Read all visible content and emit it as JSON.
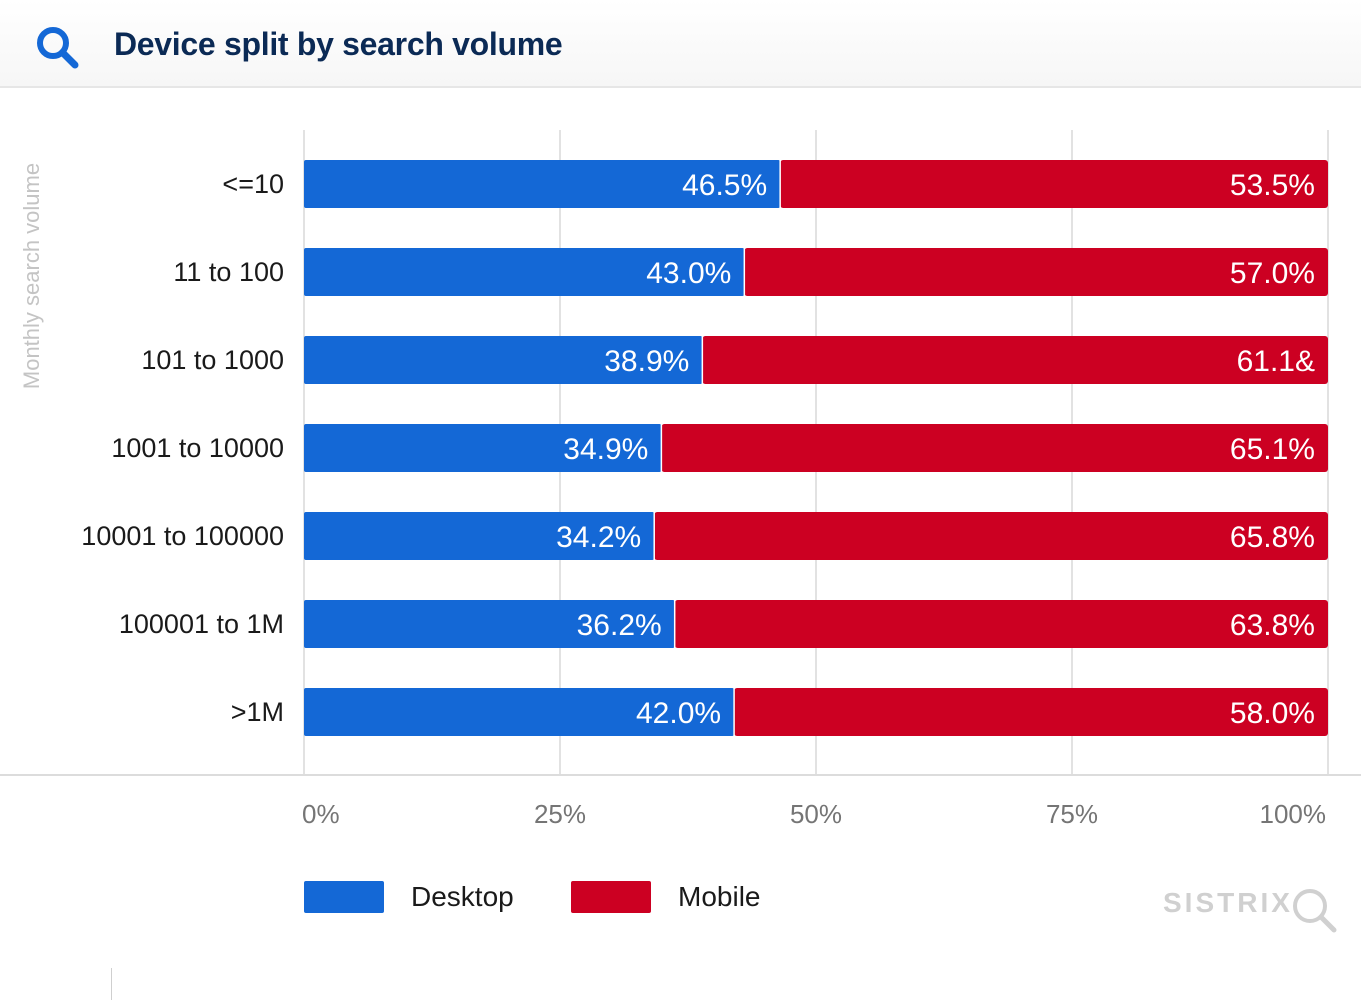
{
  "header": {
    "title": "Device split by search volume",
    "icon": "search-icon"
  },
  "chart_data": {
    "type": "bar",
    "orientation": "horizontal",
    "stacked": true,
    "ylabel": "Monthly search volume",
    "xlabel": "",
    "xlim": [
      0,
      100
    ],
    "x_ticks": [
      "0%",
      "25%",
      "50%",
      "75%",
      "100%"
    ],
    "grid": true,
    "legend_position": "bottom-left",
    "categories": [
      "<=10",
      "11 to 100",
      "101 to 1000",
      "1001 to 10000",
      "10001 to 100000",
      "100001 to 1M",
      ">1M"
    ],
    "series": [
      {
        "name": "Desktop",
        "color": "#1468d6",
        "values": [
          46.5,
          43.0,
          38.9,
          34.9,
          34.2,
          36.2,
          42.0
        ],
        "labels": [
          "46.5%",
          "43.0%",
          "38.9%",
          "34.9%",
          "34.2%",
          "36.2%",
          "42.0%"
        ]
      },
      {
        "name": "Mobile",
        "color": "#cc0022",
        "values": [
          53.5,
          57.0,
          61.1,
          65.1,
          65.8,
          63.8,
          58.0
        ],
        "labels": [
          "53.5%",
          "57.0%",
          "61.1&",
          "65.1%",
          "65.8%",
          "63.8%",
          "58.0%"
        ]
      }
    ]
  },
  "brand": {
    "name": "SISTRIX",
    "icon": "magnifier-icon"
  }
}
